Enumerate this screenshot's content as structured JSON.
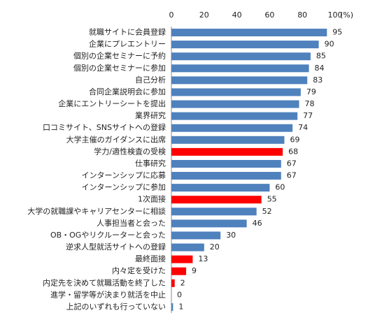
{
  "chart_data": {
    "type": "barh",
    "categories": [
      "就職サイトに会員登録",
      "企業にプレエントリー",
      "個別の企業セミナーに予約",
      "個別の企業セミナーに参加",
      "自己分析",
      "合同企業説明会に参加",
      "企業にエントリーシートを提出",
      "業界研究",
      "口コミサイト、SNSサイトへの登録",
      "大学主催のガイダンスに出席",
      "学力/適性検査の受検",
      "仕事研究",
      "インターンシップに応募",
      "インターンシップに参加",
      "1次面接",
      "大学の就職課やキャリアセンターに相談",
      "人事担当者と会った",
      "OB・OGやリクルーターと会った",
      "逆求人型就活サイトへの登録",
      "最終面接",
      "内々定を受けた",
      "内定先を決めて就職活動を終了した",
      "進学・留学等が決まり就活を中止",
      "上記のいずれも行っていない"
    ],
    "values": [
      95,
      90,
      85,
      84,
      83,
      79,
      78,
      77,
      74,
      69,
      68,
      67,
      67,
      60,
      55,
      52,
      46,
      30,
      20,
      13,
      9,
      2,
      0,
      1
    ],
    "colors": [
      "#4f81bd",
      "#4f81bd",
      "#4f81bd",
      "#4f81bd",
      "#4f81bd",
      "#4f81bd",
      "#4f81bd",
      "#4f81bd",
      "#4f81bd",
      "#4f81bd",
      "#ff0000",
      "#4f81bd",
      "#4f81bd",
      "#4f81bd",
      "#ff0000",
      "#4f81bd",
      "#4f81bd",
      "#4f81bd",
      "#4f81bd",
      "#ff0000",
      "#ff0000",
      "#ff0000",
      "#4f81bd",
      "#4f81bd"
    ],
    "xlim": [
      0,
      100
    ],
    "xticks": [
      0,
      20,
      40,
      60,
      80,
      100
    ],
    "xlabel": "(%)"
  }
}
